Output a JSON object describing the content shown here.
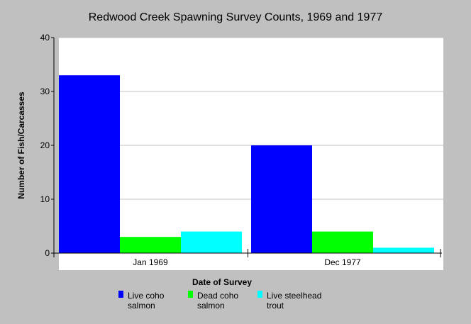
{
  "chart_data": {
    "type": "bar",
    "title": "Redwood Creek Spawning Survey Counts, 1969 and 1977",
    "xlabel": "Date of Survey",
    "ylabel": "Number of Fish/Carcasses",
    "categories": [
      "Jan 1969",
      "Dec 1977"
    ],
    "ylim": [
      0,
      40
    ],
    "yticks": [
      0,
      10,
      20,
      30,
      40
    ],
    "grid": true,
    "legend_position": "bottom",
    "series": [
      {
        "name_lines": [
          "Live coho",
          "salmon"
        ],
        "color": "#0000ff",
        "values": [
          33,
          20
        ]
      },
      {
        "name_lines": [
          "Dead coho",
          "salmon"
        ],
        "color": "#00ff00",
        "values": [
          3,
          4
        ]
      },
      {
        "name_lines": [
          "Live steelhead",
          "trout"
        ],
        "color": "#00ffff",
        "values": [
          4,
          1
        ]
      }
    ]
  },
  "colors": {
    "background": "#c0c0c0",
    "plot_area": "#ffffff",
    "gridline": "#c0c0c0"
  }
}
